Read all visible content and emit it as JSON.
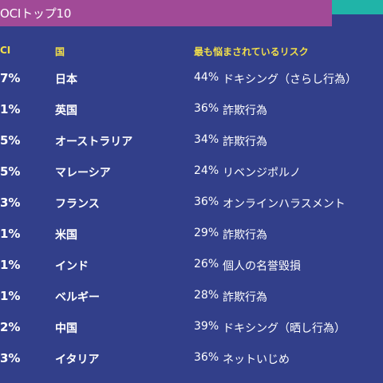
{
  "title": "OCIトップ10",
  "colors": {
    "background": "#323f8a",
    "title_bar": "#a14a97",
    "accent_bar": "#20b4a8",
    "header_text": "#f2df4a"
  },
  "headers": {
    "score": "CI",
    "country": "国",
    "risk": "最も悩まされているリスク"
  },
  "rows": [
    {
      "score": "7%",
      "country": "日本",
      "risk_pct": "44%",
      "risk": "ドキシング（さらし行為）"
    },
    {
      "score": "1%",
      "country": "英国",
      "risk_pct": "36%",
      "risk": "詐欺行為"
    },
    {
      "score": "5%",
      "country": "オーストラリア",
      "risk_pct": "34%",
      "risk": "詐欺行為"
    },
    {
      "score": "5%",
      "country": "マレーシア",
      "risk_pct": "24%",
      "risk": "リベンジポルノ"
    },
    {
      "score": "3%",
      "country": "フランス",
      "risk_pct": "36%",
      "risk": "オンラインハラスメント"
    },
    {
      "score": "1%",
      "country": "米国",
      "risk_pct": "29%",
      "risk": "詐欺行為"
    },
    {
      "score": "1%",
      "country": "インド",
      "risk_pct": "26%",
      "risk": "個人の名誉毀損"
    },
    {
      "score": "1%",
      "country": "ベルギー",
      "risk_pct": "28%",
      "risk": "詐欺行為"
    },
    {
      "score": "2%",
      "country": "中国",
      "risk_pct": "39%",
      "risk": "ドキシング（晒し行為）"
    },
    {
      "score": "3%",
      "country": "イタリア",
      "risk_pct": "36%",
      "risk": "ネットいじめ"
    }
  ]
}
